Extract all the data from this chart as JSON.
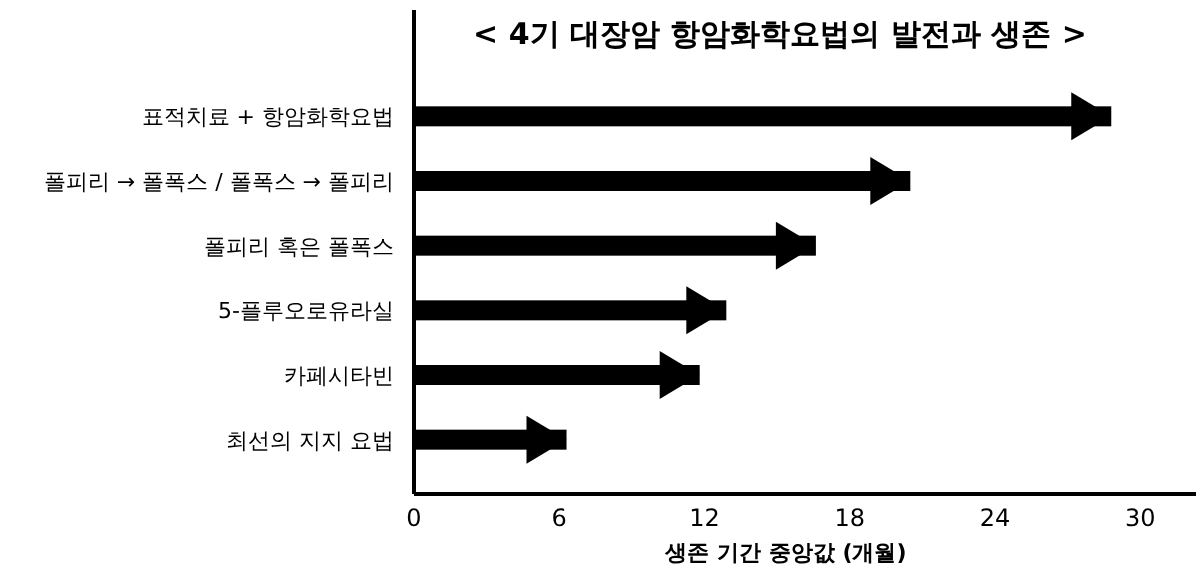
{
  "chart_data": {
    "type": "bar",
    "orientation": "horizontal",
    "title": "< 4기 대장암 항암화학요법의 발전과 생존 >",
    "xlabel": "생존 기간 중앙값 (개월)",
    "categories": [
      "표적치료 + 항암화학요법",
      "폴피리 → 폴폭스 / 폴폭스 → 폴피리",
      "폴피리 혹은 폴폭스",
      "5-플루오로유라실",
      "카페시타빈",
      "최선의 지지 요법"
    ],
    "values": [
      28.8,
      20.5,
      16.6,
      12.9,
      11.8,
      6.3
    ],
    "color": "#000000",
    "xlim": [
      0,
      32.3
    ],
    "xticks": [
      0,
      6,
      12,
      18,
      24,
      30
    ],
    "marker": "triangle",
    "grid": false
  }
}
